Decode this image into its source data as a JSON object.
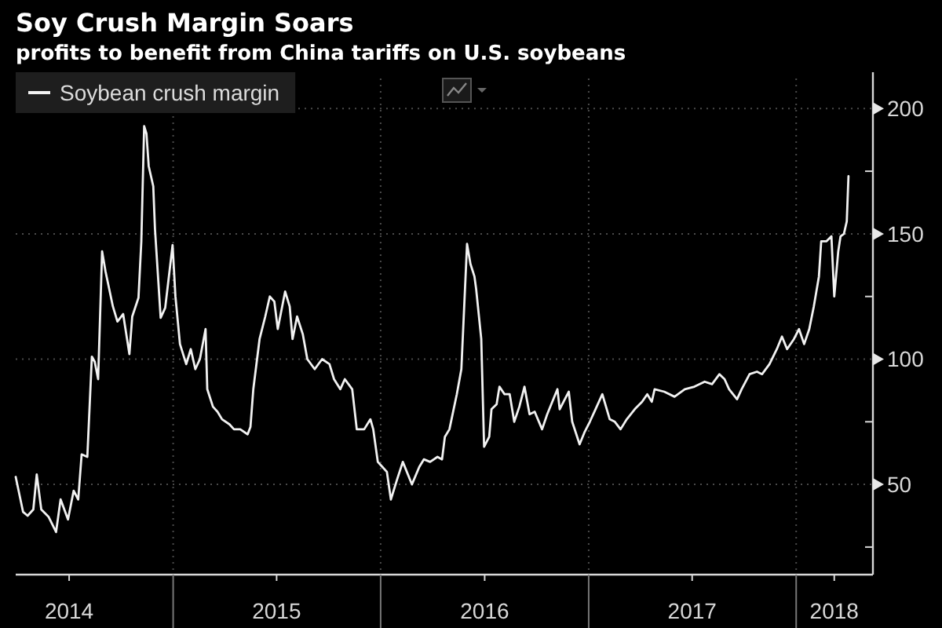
{
  "chart_data": {
    "type": "line",
    "title": "Soy Crush Margin Soars",
    "subtitle": "profits to benefit from China tariffs on U.S. soybeans",
    "x": [
      "2014-03-30",
      "2014-04-12",
      "2014-04-20",
      "2014-04-30",
      "2014-05-06",
      "2014-05-14",
      "2014-05-27",
      "2014-06-09",
      "2014-06-17",
      "2014-06-30",
      "2014-07-10",
      "2014-07-18",
      "2014-07-24",
      "2014-08-03",
      "2014-08-08",
      "2014-08-11",
      "2014-08-16",
      "2014-08-22",
      "2014-08-29",
      "2014-09-04",
      "2014-09-17",
      "2014-09-25",
      "2014-10-05",
      "2014-10-16",
      "2014-10-21",
      "2014-11-01",
      "2014-11-06",
      "2014-11-11",
      "2014-11-15",
      "2014-11-19",
      "2014-11-27",
      "2014-11-30",
      "2014-12-10",
      "2014-12-18",
      "2014-12-31",
      "2015-01-05",
      "2015-01-13",
      "2015-01-24",
      "2015-02-01",
      "2015-02-09",
      "2015-02-17",
      "2015-02-27",
      "2015-03-02",
      "2015-03-12",
      "2015-03-20",
      "2015-03-28",
      "2015-04-10",
      "2015-04-18",
      "2015-04-29",
      "2015-05-12",
      "2015-05-17",
      "2015-05-22",
      "2015-06-02",
      "2015-06-12",
      "2015-06-20",
      "2015-06-28",
      "2015-07-04",
      "2015-07-17",
      "2015-07-25",
      "2015-07-30",
      "2015-08-07",
      "2015-08-17",
      "2015-08-25",
      "2015-09-07",
      "2015-09-20",
      "2015-10-03",
      "2015-10-11",
      "2015-10-22",
      "2015-10-30",
      "2015-11-12",
      "2015-11-20",
      "2015-12-03",
      "2015-12-14",
      "2015-12-19",
      "2015-12-27",
      "2016-01-04",
      "2016-01-12",
      "2016-01-19",
      "2016-01-30",
      "2016-02-09",
      "2016-02-25",
      "2016-03-09",
      "2016-03-17",
      "2016-03-28",
      "2016-04-10",
      "2016-04-18",
      "2016-04-23",
      "2016-05-01",
      "2016-05-14",
      "2016-05-22",
      "2016-06-01",
      "2016-06-07",
      "2016-06-14",
      "2016-06-17",
      "2016-06-26",
      "2016-07-01",
      "2016-07-10",
      "2016-07-14",
      "2016-07-23",
      "2016-07-28",
      "2016-08-06",
      "2016-08-15",
      "2016-08-23",
      "2016-09-01",
      "2016-09-10",
      "2016-09-19",
      "2016-09-28",
      "2016-10-11",
      "2016-10-20",
      "2016-10-29",
      "2016-11-07",
      "2016-11-11",
      "2016-11-20",
      "2016-11-27",
      "2016-12-03",
      "2016-12-16",
      "2016-12-25",
      "2017-01-03",
      "2017-01-13",
      "2017-01-25",
      "2017-02-07",
      "2017-02-16",
      "2017-02-26",
      "2017-03-09",
      "2017-03-23",
      "2017-04-05",
      "2017-04-14",
      "2017-04-22",
      "2017-04-27",
      "2017-05-14",
      "2017-06-01",
      "2017-06-19",
      "2017-07-06",
      "2017-07-24",
      "2017-08-06",
      "2017-08-19",
      "2017-08-28",
      "2017-09-05",
      "2017-09-19",
      "2017-09-27",
      "2017-10-11",
      "2017-10-24",
      "2017-11-02",
      "2017-11-15",
      "2017-11-28",
      "2017-12-07",
      "2017-12-16",
      "2017-12-28",
      "2018-01-06",
      "2018-01-15",
      "2018-01-24",
      "2018-02-01",
      "2018-02-10",
      "2018-02-14",
      "2018-02-23",
      "2018-03-04",
      "2018-03-09",
      "2018-03-16",
      "2018-03-20",
      "2018-03-26",
      "2018-03-31",
      "2018-04-03"
    ],
    "series": [
      {
        "name": "Soybean crush margin",
        "color": "#f2f2f2",
        "values": [
          53,
          39,
          37.5,
          40,
          54,
          40,
          37,
          31,
          44,
          36,
          47.5,
          44,
          62,
          61,
          86,
          101,
          99,
          92,
          143,
          135,
          121,
          115,
          118,
          102,
          117,
          124.5,
          147,
          193,
          190,
          177,
          169,
          152,
          116.5,
          120.5,
          145.5,
          125,
          106,
          98,
          104,
          96,
          100,
          112,
          88,
          81,
          79,
          76,
          74,
          72,
          72,
          70,
          73,
          88,
          108,
          117,
          125,
          123,
          112,
          127,
          121,
          108,
          117,
          110,
          100,
          96,
          100,
          98,
          92,
          88,
          92,
          88,
          72,
          72,
          76,
          72,
          59,
          57,
          55,
          44,
          52,
          59,
          50,
          57,
          60,
          59,
          61,
          60,
          69,
          72,
          86,
          96,
          146,
          138,
          133,
          128,
          108,
          65,
          69,
          80,
          82,
          89,
          86,
          86,
          75,
          81,
          89,
          78,
          79,
          72,
          78,
          83,
          88,
          80,
          84,
          87,
          75,
          66,
          71,
          75,
          80,
          86,
          76,
          75,
          72,
          76,
          80,
          83,
          86,
          83,
          88,
          87,
          85,
          88,
          89,
          91,
          90,
          94,
          92,
          88,
          84,
          88,
          94,
          95,
          94,
          98,
          104,
          109,
          104,
          108,
          112,
          106,
          112,
          121,
          133,
          147,
          147,
          149,
          125,
          143,
          149,
          150,
          155,
          173
        ]
      }
    ],
    "xlim": [
      "2014-03-30",
      "2018-05-16"
    ],
    "xticks": [
      {
        "value": "2015-01-01",
        "label": null
      },
      {
        "value": "2016-01-01",
        "label": null
      },
      {
        "value": "2017-01-01",
        "label": null
      },
      {
        "value": "2018-01-01",
        "label": null
      },
      {
        "value": "2014-07-02",
        "label": "2014"
      },
      {
        "value": "2015-07-02",
        "label": "2015"
      },
      {
        "value": "2016-07-02",
        "label": "2016"
      },
      {
        "value": "2017-07-02",
        "label": "2017"
      },
      {
        "value": "2018-03-09",
        "label": "2018"
      }
    ],
    "ylim": [
      14,
      212
    ],
    "yticks": [
      {
        "value": 25,
        "label": null
      },
      50,
      {
        "value": 75,
        "label": null
      },
      100,
      {
        "value": 125,
        "label": null
      },
      150,
      {
        "value": 175,
        "label": null
      },
      200
    ],
    "grid": true,
    "legend": "top left"
  }
}
